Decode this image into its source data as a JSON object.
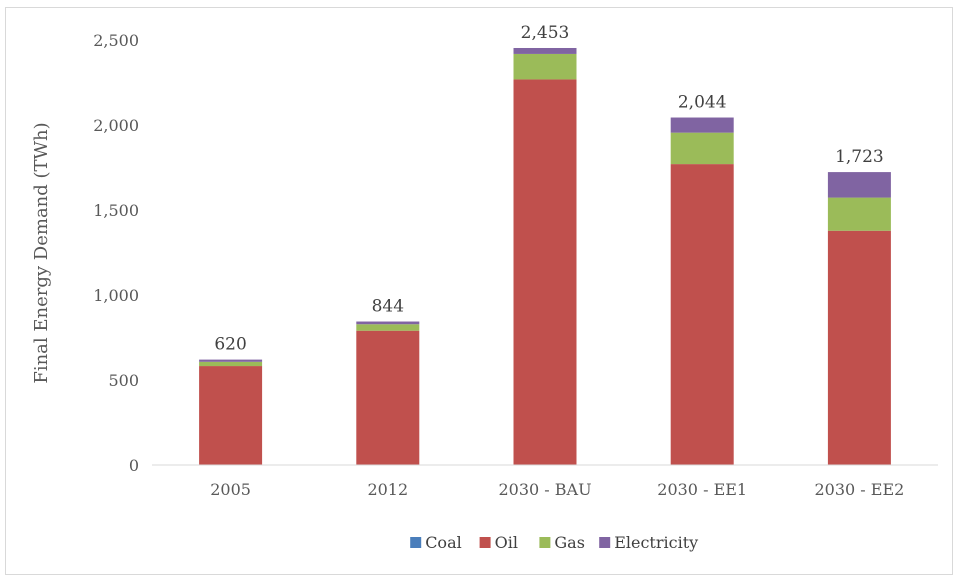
{
  "chart_data": {
    "type": "bar",
    "stacked": true,
    "title": "",
    "xlabel": "",
    "ylabel": "Final Energy Demand (TWh)",
    "ylim": [
      0,
      2500
    ],
    "yticks": [
      "0",
      "500",
      "1,000",
      "1,500",
      "2,000",
      "2,500"
    ],
    "categories": [
      "2005",
      "2012",
      "2030 - BAU",
      "2030 - EE1",
      "2030 - EE2"
    ],
    "series": [
      {
        "name": "Coal",
        "color": "#4a7ebb",
        "values": [
          0,
          0,
          0,
          0,
          0
        ]
      },
      {
        "name": "Oil",
        "color": "#c0504d",
        "values": [
          582,
          790,
          2268,
          1770,
          1378
        ]
      },
      {
        "name": "Gas",
        "color": "#9bbb59",
        "values": [
          25,
          38,
          150,
          185,
          195
        ]
      },
      {
        "name": "Electricity",
        "color": "#8064a2",
        "values": [
          13,
          16,
          35,
          89,
          150
        ]
      }
    ],
    "totals": [
      "620",
      "844",
      "2,453",
      "2,044",
      "1,723"
    ],
    "grid": false,
    "legend": "bottom"
  }
}
